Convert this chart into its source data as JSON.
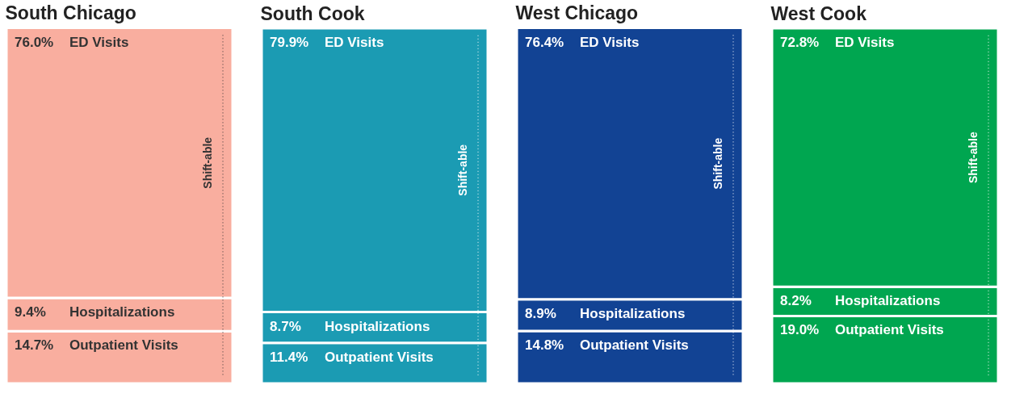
{
  "chart_data": [
    {
      "type": "bar",
      "stacked": true,
      "title": "South Chicago",
      "categories": [
        null
      ],
      "ylim": [
        0,
        100
      ],
      "tick_labels": false,
      "annotations": [
        "Shift-able"
      ],
      "series": [
        {
          "name": "Outpatient Visits",
          "color": "#f9ae9f",
          "values": [
            14.7
          ],
          "value_labels": [
            "14.7%"
          ]
        },
        {
          "name": "Hospitalizations",
          "color": "#f9ae9f",
          "values": [
            9.4
          ],
          "value_labels": [
            "9.4%"
          ]
        },
        {
          "name": "ED Visits",
          "color": "#f9ae9f",
          "values": [
            76.0
          ],
          "value_labels": [
            "76.0%"
          ]
        }
      ]
    },
    {
      "type": "bar",
      "stacked": true,
      "title": "South Cook",
      "categories": [
        null
      ],
      "ylim": [
        0,
        100
      ],
      "tick_labels": false,
      "annotations": [
        "Shift-able"
      ],
      "series": [
        {
          "name": "Outpatient Visits",
          "color": "#1b9bb3",
          "values": [
            11.4
          ],
          "value_labels": [
            "11.4%"
          ]
        },
        {
          "name": "Hospitalizations",
          "color": "#1b9bb3",
          "values": [
            8.7
          ],
          "value_labels": [
            "8.7%"
          ]
        },
        {
          "name": "ED Visits",
          "color": "#1b9bb3",
          "values": [
            79.9
          ],
          "value_labels": [
            "79.9%"
          ]
        }
      ]
    },
    {
      "type": "bar",
      "stacked": true,
      "title": "West Chicago",
      "categories": [
        null
      ],
      "ylim": [
        0,
        100
      ],
      "tick_labels": false,
      "annotations": [
        "Shift-able"
      ],
      "series": [
        {
          "name": "Outpatient Visits",
          "color": "#124394",
          "values": [
            14.8
          ],
          "value_labels": [
            "14.8%"
          ]
        },
        {
          "name": "Hospitalizations",
          "color": "#124394",
          "values": [
            8.9
          ],
          "value_labels": [
            "8.9%"
          ]
        },
        {
          "name": "ED Visits",
          "color": "#124394",
          "values": [
            76.4
          ],
          "value_labels": [
            "76.4%"
          ]
        }
      ]
    },
    {
      "type": "bar",
      "stacked": true,
      "title": "West Cook",
      "categories": [
        null
      ],
      "ylim": [
        0,
        100
      ],
      "tick_labels": false,
      "annotations": [
        "Shift-able"
      ],
      "series": [
        {
          "name": "Outpatient Visits",
          "color": "#00a650",
          "values": [
            19.0
          ],
          "value_labels": [
            "19.0%"
          ]
        },
        {
          "name": "Hospitalizations",
          "color": "#00a650",
          "values": [
            8.2
          ],
          "value_labels": [
            "8.2%"
          ]
        },
        {
          "name": "ED Visits",
          "color": "#00a650",
          "values": [
            72.8
          ],
          "value_labels": [
            "72.8%"
          ]
        }
      ]
    }
  ]
}
